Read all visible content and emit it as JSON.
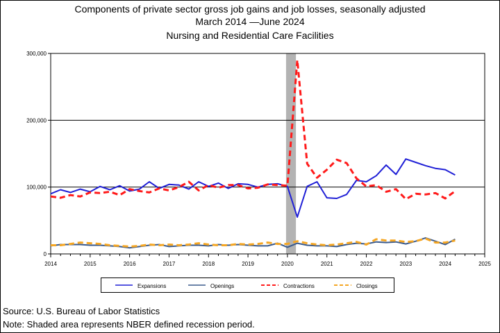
{
  "chart_data": {
    "type": "line",
    "title": "Components of private sector gross job gains and job losses, seasonally adjusted",
    "subtitle_dates": "March 2014 —June 2024",
    "subtitle_industry": "Nursing and Residential Care Facilities",
    "xlabel": "",
    "ylabel": "",
    "xlim": [
      2014,
      2025
    ],
    "ylim": [
      0,
      300000
    ],
    "y_ticks": [
      0,
      100000,
      200000,
      300000
    ],
    "y_tick_labels": [
      "0",
      "100,000",
      "200,000",
      "300,000"
    ],
    "x_ticks": [
      2014,
      2015,
      2016,
      2017,
      2018,
      2019,
      2020,
      2021,
      2022,
      2023,
      2024,
      2025
    ],
    "x_tick_labels": [
      "2014",
      "2015",
      "2016",
      "2017",
      "2018",
      "2019",
      "2020",
      "2021",
      "2022",
      "2023",
      "2024",
      "2025"
    ],
    "grid": "horizontal at major y ticks",
    "legend_position": "bottom",
    "recession_shading": [
      2020.0,
      2020.25
    ],
    "x": [
      2014.0,
      2014.25,
      2014.5,
      2014.75,
      2015.0,
      2015.25,
      2015.5,
      2015.75,
      2016.0,
      2016.25,
      2016.5,
      2016.75,
      2017.0,
      2017.25,
      2017.5,
      2017.75,
      2018.0,
      2018.25,
      2018.5,
      2018.75,
      2019.0,
      2019.25,
      2019.5,
      2019.75,
      2020.0,
      2020.25,
      2020.5,
      2020.75,
      2021.0,
      2021.25,
      2021.5,
      2021.75,
      2022.0,
      2022.25,
      2022.5,
      2022.75,
      2023.0,
      2023.25,
      2023.5,
      2023.75,
      2024.0,
      2024.25
    ],
    "series": [
      {
        "name": "Expansions",
        "color": "#1f1fd6",
        "dash": "solid",
        "width": 2,
        "values": [
          90000,
          96000,
          92000,
          97000,
          93000,
          101000,
          96000,
          102000,
          94000,
          97000,
          108000,
          98000,
          104000,
          103000,
          97000,
          108000,
          101000,
          106000,
          98000,
          105000,
          104000,
          100000,
          104000,
          105000,
          101000,
          55000,
          101000,
          108000,
          84000,
          83000,
          89000,
          110000,
          108000,
          117000,
          133000,
          119000,
          142000,
          137000,
          132000,
          128000,
          126000,
          118000
        ]
      },
      {
        "name": "Openings",
        "color": "#3a5a8c",
        "dash": "solid",
        "width": 2,
        "values": [
          12000,
          14000,
          14000,
          14000,
          13000,
          13000,
          12000,
          11000,
          9000,
          11000,
          13000,
          14000,
          11000,
          12000,
          13000,
          13000,
          12000,
          14000,
          13000,
          14000,
          13000,
          12000,
          12000,
          16000,
          10000,
          16000,
          13000,
          12000,
          12000,
          11000,
          14000,
          16000,
          15000,
          18000,
          17000,
          18000,
          15000,
          19000,
          24000,
          19000,
          14000,
          22000
        ]
      },
      {
        "name": "Contractions",
        "color": "#ff1a1a",
        "dash": "dashed",
        "width": 3,
        "values": [
          86000,
          84000,
          88000,
          86000,
          92000,
          91000,
          93000,
          88000,
          97000,
          94000,
          92000,
          98000,
          95000,
          100000,
          108000,
          95000,
          103000,
          99000,
          103000,
          103000,
          98000,
          99000,
          104000,
          103000,
          102000,
          290000,
          135000,
          114000,
          126000,
          141000,
          136000,
          113000,
          101000,
          103000,
          93000,
          97000,
          82000,
          90000,
          89000,
          91000,
          83000,
          94000
        ]
      },
      {
        "name": "Closings",
        "color": "#f5a623",
        "dash": "dashed",
        "width": 3,
        "values": [
          13000,
          13000,
          15000,
          17000,
          16000,
          15000,
          13000,
          12000,
          11000,
          12000,
          14000,
          13000,
          14000,
          13000,
          14000,
          16000,
          14000,
          13000,
          13000,
          15000,
          14000,
          15000,
          17000,
          15000,
          15000,
          19000,
          16000,
          14000,
          13000,
          14000,
          16000,
          18000,
          14000,
          22000,
          20000,
          20000,
          18000,
          19000,
          23000,
          17000,
          17000,
          20000
        ]
      }
    ]
  },
  "source_note": "Source: U.S. Bureau of Labor Statistics",
  "shading_note": "Note: Shaded area represents NBER defined recession period."
}
